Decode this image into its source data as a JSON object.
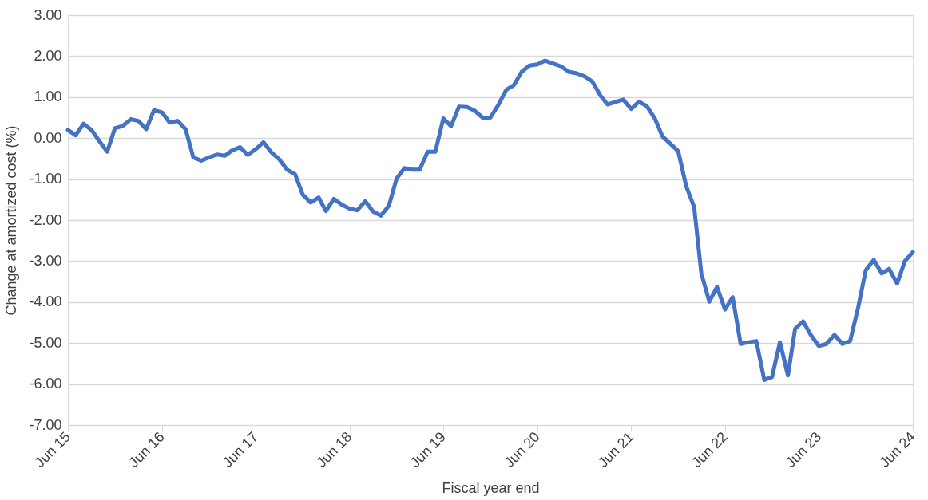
{
  "chart_data": {
    "type": "line",
    "xlabel": "Fiscal year end",
    "ylabel": "Change at amortized cost (%)",
    "x": [
      "2015-06",
      "2015-07",
      "2015-08",
      "2015-09",
      "2015-10",
      "2015-11",
      "2015-12",
      "2016-01",
      "2016-02",
      "2016-03",
      "2016-04",
      "2016-05",
      "2016-06",
      "2016-07",
      "2016-08",
      "2016-09",
      "2016-10",
      "2016-11",
      "2016-12",
      "2017-01",
      "2017-02",
      "2017-03",
      "2017-04",
      "2017-05",
      "2017-06",
      "2017-07",
      "2017-08",
      "2017-09",
      "2017-10",
      "2017-11",
      "2017-12",
      "2018-01",
      "2018-02",
      "2018-03",
      "2018-04",
      "2018-05",
      "2018-06",
      "2018-07",
      "2018-08",
      "2018-09",
      "2018-10",
      "2018-11",
      "2018-12",
      "2019-01",
      "2019-02",
      "2019-03",
      "2019-04",
      "2019-05",
      "2019-06",
      "2019-07",
      "2019-08",
      "2019-09",
      "2019-10",
      "2019-11",
      "2019-12",
      "2020-01",
      "2020-02",
      "2020-03",
      "2020-04",
      "2020-05",
      "2020-06",
      "2020-07",
      "2020-08",
      "2020-09",
      "2020-10",
      "2020-11",
      "2020-12",
      "2021-01",
      "2021-02",
      "2021-03",
      "2021-04",
      "2021-05",
      "2021-06",
      "2021-07",
      "2021-08",
      "2021-09",
      "2021-10",
      "2021-11",
      "2021-12",
      "2022-01",
      "2022-02",
      "2022-03",
      "2022-04",
      "2022-05",
      "2022-06",
      "2022-07",
      "2022-08",
      "2022-09",
      "2022-10",
      "2022-11",
      "2022-12",
      "2023-01",
      "2023-02",
      "2023-03",
      "2023-04",
      "2023-05",
      "2023-06",
      "2023-07",
      "2023-08",
      "2023-09",
      "2023-10",
      "2023-11",
      "2023-12",
      "2024-01",
      "2024-02",
      "2024-03",
      "2024-04",
      "2024-05",
      "2024-06"
    ],
    "series": [
      {
        "color": "#4472c4",
        "values": [
          0.2,
          0.07,
          0.35,
          0.2,
          -0.07,
          -0.33,
          0.24,
          0.3,
          0.46,
          0.42,
          0.22,
          0.68,
          0.63,
          0.38,
          0.42,
          0.22,
          -0.47,
          -0.55,
          -0.47,
          -0.4,
          -0.43,
          -0.3,
          -0.22,
          -0.41,
          -0.27,
          -0.1,
          -0.35,
          -0.52,
          -0.77,
          -0.88,
          -1.38,
          -1.57,
          -1.45,
          -1.78,
          -1.48,
          -1.62,
          -1.72,
          -1.76,
          -1.54,
          -1.79,
          -1.89,
          -1.65,
          -0.99,
          -0.73,
          -0.77,
          -0.77,
          -0.33,
          -0.33,
          0.48,
          0.29,
          0.77,
          0.76,
          0.67,
          0.5,
          0.5,
          0.81,
          1.18,
          1.29,
          1.62,
          1.77,
          1.8,
          1.89,
          1.82,
          1.75,
          1.62,
          1.58,
          1.51,
          1.38,
          1.04,
          0.82,
          0.88,
          0.94,
          0.71,
          0.89,
          0.78,
          0.48,
          0.04,
          -0.14,
          -0.32,
          -1.17,
          -1.68,
          -3.3,
          -3.99,
          -3.63,
          -4.18,
          -3.88,
          -5.02,
          -4.98,
          -4.95,
          -5.9,
          -5.83,
          -4.98,
          -5.79,
          -4.65,
          -4.47,
          -4.8,
          -5.07,
          -5.02,
          -4.8,
          -5.02,
          -4.95,
          -4.14,
          -3.22,
          -2.97,
          -3.3,
          -3.19,
          -3.55,
          -3.0,
          -2.78
        ]
      }
    ],
    "xlim": [
      "2015-06",
      "2024-06"
    ],
    "xticks": [
      {
        "value": "2015-06",
        "label": "Jun 15"
      },
      {
        "value": "2016-06",
        "label": "Jun 16"
      },
      {
        "value": "2017-06",
        "label": "Jun 17"
      },
      {
        "value": "2018-06",
        "label": "Jun 18"
      },
      {
        "value": "2019-06",
        "label": "Jun 19"
      },
      {
        "value": "2020-06",
        "label": "Jun 20"
      },
      {
        "value": "2021-06",
        "label": "Jun 21"
      },
      {
        "value": "2022-06",
        "label": "Jun 22"
      },
      {
        "value": "2023-06",
        "label": "Jun 23"
      },
      {
        "value": "2024-06",
        "label": "Jun 24"
      }
    ],
    "ylim": [
      -7,
      3
    ],
    "yticks": [
      {
        "value": 3,
        "label": "3.00"
      },
      {
        "value": 2,
        "label": "2.00"
      },
      {
        "value": 1,
        "label": "1.00"
      },
      {
        "value": 0,
        "label": "0.00"
      },
      {
        "value": -1,
        "label": "-1.00"
      },
      {
        "value": -2,
        "label": "-2.00"
      },
      {
        "value": -3,
        "label": "-3.00"
      },
      {
        "value": -4,
        "label": "-4.00"
      },
      {
        "value": -5,
        "label": "-5.00"
      },
      {
        "value": -6,
        "label": "-6.00"
      },
      {
        "value": -7,
        "label": "-7.00"
      }
    ],
    "grid": "y",
    "marker": "none",
    "line_style": "solid"
  }
}
